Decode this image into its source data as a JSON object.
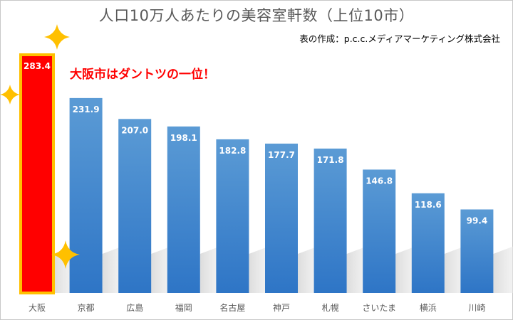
{
  "chart_data": {
    "type": "bar",
    "title": "人口10万人あたりの美容室軒数（上位10市）",
    "credit": "表の作成：p.c.c.メディアマーケティング株式会社",
    "annotation": "大阪市はダントツの一位！",
    "categories": [
      "大阪",
      "京都",
      "広島",
      "福岡",
      "名古屋",
      "神戸",
      "札幌",
      "さいたま",
      "横浜",
      "川崎"
    ],
    "values": [
      283.4,
      231.9,
      207.0,
      198.1,
      182.8,
      177.7,
      171.8,
      146.8,
      118.6,
      99.4
    ],
    "value_labels": [
      "283.4",
      "231.9",
      "207.0",
      "198.1",
      "182.8",
      "177.7",
      "171.8",
      "146.8",
      "118.6",
      "99.4"
    ],
    "ylim": [
      0,
      283.4
    ],
    "grid": false,
    "legend": "none",
    "highlight_index": 0,
    "colors": {
      "bar_top": "#5b9bd5",
      "bar_bottom": "#2e75c6",
      "highlight_fill": "#ff0000",
      "highlight_border": "#ffc000",
      "value_label": "#ffffff",
      "tick_label": "#595959",
      "annotation": "#ff0000",
      "sparkle": "#ffc000"
    }
  }
}
